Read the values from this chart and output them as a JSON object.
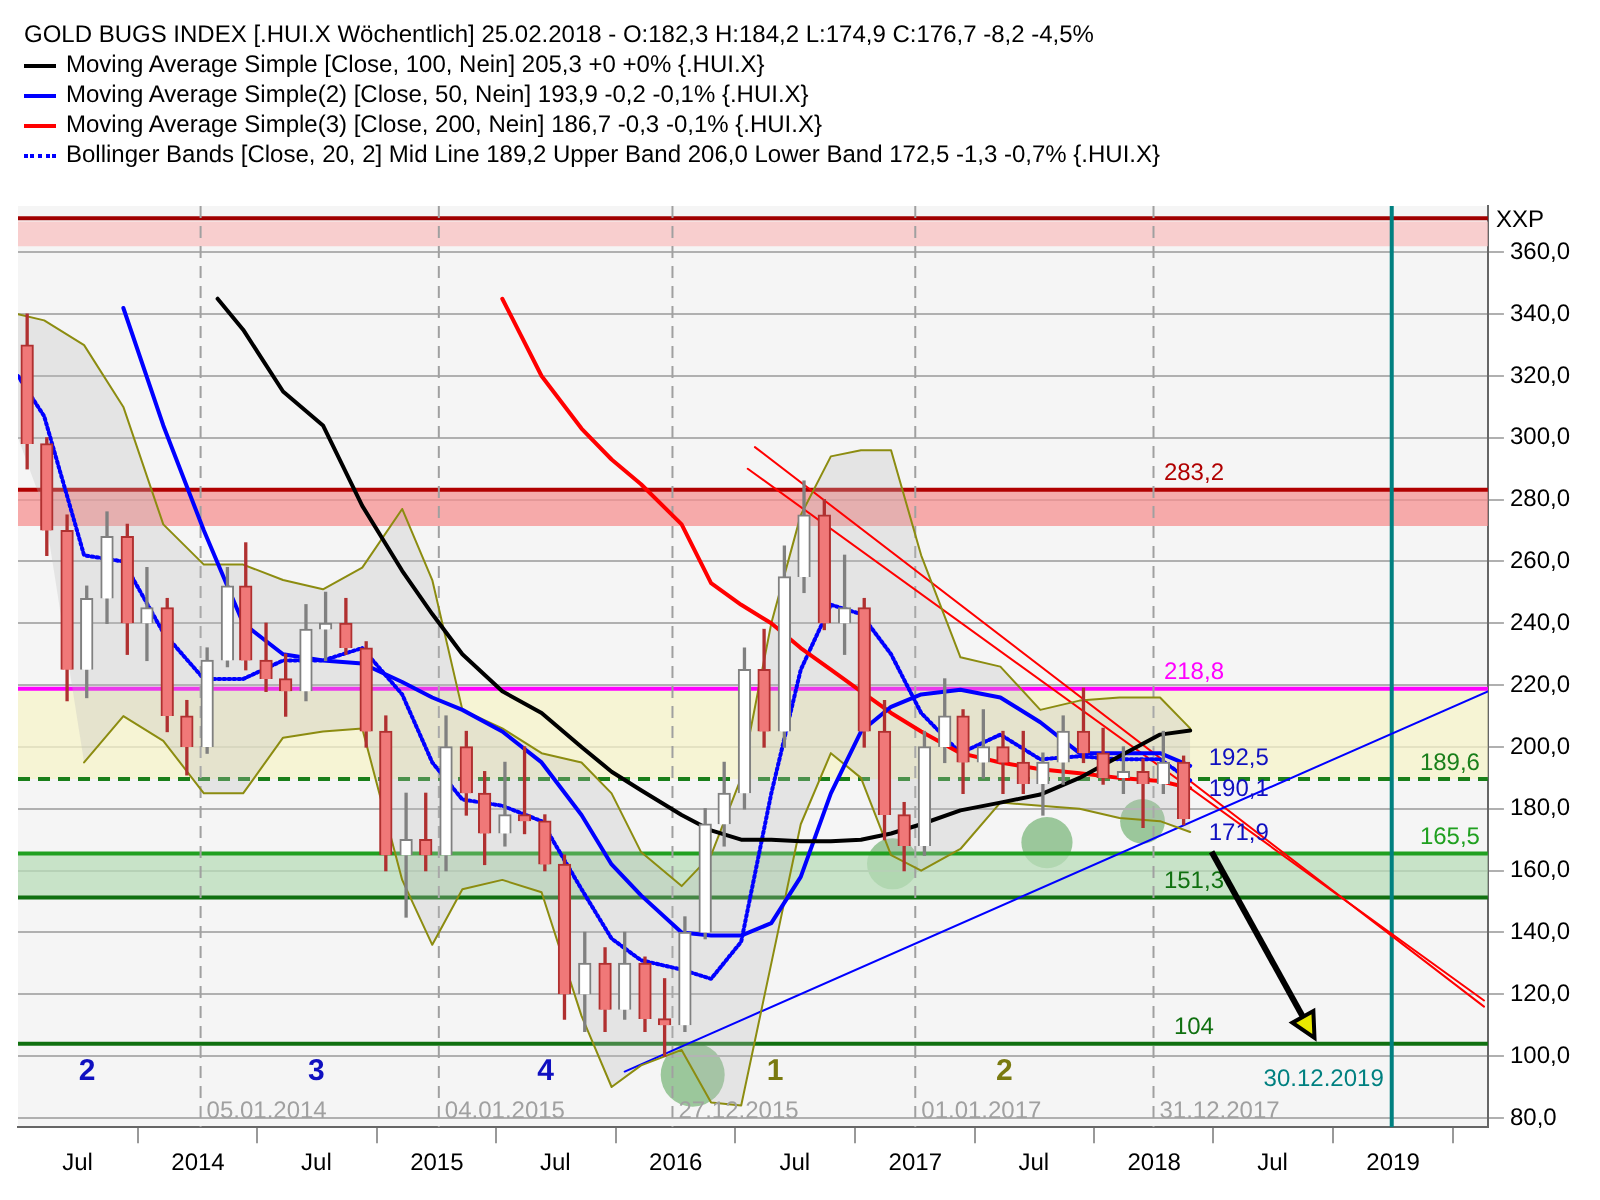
{
  "chart_data": {
    "type": "candlestick",
    "title": "GOLD BUGS INDEX [.HUI.X  Wöchentlich] 25.02.2018 - O:182,3 H:184,2 L:174,9 C:176,7 -8,2 -4,5%",
    "ylabel": "XXP",
    "xlim": [
      "2013-04-01",
      "2019-05-26"
    ],
    "xticks": [
      {
        "value": "2013-07-01",
        "label": "Jul"
      },
      {
        "value": "2014-01-01",
        "label": "2014"
      },
      {
        "value": "2014-07-01",
        "label": "Jul"
      },
      {
        "value": "2015-01-01",
        "label": "2015"
      },
      {
        "value": "2015-07-01",
        "label": "Jul"
      },
      {
        "value": "2016-01-01",
        "label": "2016"
      },
      {
        "value": "2016-07-01",
        "label": "Jul"
      },
      {
        "value": "2017-01-01",
        "label": "2017"
      },
      {
        "value": "2017-07-01",
        "label": "Jul"
      },
      {
        "value": "2018-01-01",
        "label": "2018"
      },
      {
        "value": "2018-07-01",
        "label": "Jul"
      },
      {
        "value": "2019-01-01",
        "label": "2019"
      }
    ],
    "ylim": [
      77,
      375
    ],
    "yticks": [
      {
        "value": 80,
        "label": "80,0"
      },
      {
        "value": 100,
        "label": "100,0"
      },
      {
        "value": 120,
        "label": "120,0"
      },
      {
        "value": 140,
        "label": "140,0"
      },
      {
        "value": 160,
        "label": "160,0"
      },
      {
        "value": 180,
        "label": "180,0"
      },
      {
        "value": 200,
        "label": "200,0"
      },
      {
        "value": 220,
        "label": "220,0"
      },
      {
        "value": 240,
        "label": "240,0"
      },
      {
        "value": 260,
        "label": "260,0"
      },
      {
        "value": 280,
        "label": "280,0"
      },
      {
        "value": 300,
        "label": "300,0"
      },
      {
        "value": 320,
        "label": "320,0"
      },
      {
        "value": 340,
        "label": "340,0"
      },
      {
        "value": 360,
        "label": "360,0"
      }
    ],
    "grid": "y",
    "legend": "top left",
    "series": [
      {
        "colors": [
          "#b03030",
          "#b03030",
          "#b03030",
          "#808080",
          "#808080",
          "#b03030",
          "#808080",
          "#b03030",
          "#b03030",
          "#808080",
          "#808080",
          "#b03030",
          "#b03030",
          "#b03030",
          "#808080",
          "#808080",
          "#b03030",
          "#b03030",
          "#b03030",
          "#808080",
          "#b03030",
          "#808080",
          "#b03030",
          "#b03030",
          "#808080",
          "#b03030",
          "#b03030",
          "#b03030",
          "#808080",
          "#b03030",
          "#808080",
          "#b03030",
          "#b03030",
          "#808080",
          "#808080",
          "#808080",
          "#808080",
          "#b03030",
          "#808080",
          "#808080",
          "#b03030",
          "#808080",
          "#b03030",
          "#b03030",
          "#b03030",
          "#808080",
          "#808080",
          "#b03030",
          "#808080",
          "#b03030",
          "#b03030",
          "#808080",
          "#808080",
          "#b03030",
          "#b03030",
          "#808080",
          "#b03030",
          "#808080",
          "#b03030"
        ],
        "x": [
          "2013-04-15",
          "2013-05-15",
          "2013-06-15",
          "2013-07-15",
          "2013-08-15",
          "2013-09-15",
          "2013-10-15",
          "2013-11-15",
          "2013-12-15",
          "2014-01-15",
          "2014-02-15",
          "2014-03-15",
          "2014-04-15",
          "2014-05-15",
          "2014-06-15",
          "2014-07-15",
          "2014-08-15",
          "2014-09-15",
          "2014-10-15",
          "2014-11-15",
          "2014-12-15",
          "2015-01-15",
          "2015-02-15",
          "2015-03-15",
          "2015-04-15",
          "2015-05-15",
          "2015-06-15",
          "2015-07-15",
          "2015-08-15",
          "2015-09-15",
          "2015-10-15",
          "2015-11-15",
          "2015-12-15",
          "2016-01-15",
          "2016-02-15",
          "2016-03-15",
          "2016-04-15",
          "2016-05-15",
          "2016-06-15",
          "2016-07-15",
          "2016-08-15",
          "2016-09-15",
          "2016-10-15",
          "2016-11-15",
          "2016-12-15",
          "2017-01-15",
          "2017-02-15",
          "2017-03-15",
          "2017-04-15",
          "2017-05-15",
          "2017-06-15",
          "2017-07-15",
          "2017-08-15",
          "2017-09-15",
          "2017-10-15",
          "2017-11-15",
          "2017-12-15",
          "2018-01-15",
          "2018-02-15"
        ],
        "ohlc": [
          [
            330,
            340,
            290,
            298
          ],
          [
            298,
            300,
            262,
            270
          ],
          [
            270,
            275,
            215,
            225
          ],
          [
            225,
            252,
            216,
            248
          ],
          [
            248,
            276,
            240,
            268
          ],
          [
            268,
            272,
            230,
            240
          ],
          [
            240,
            258,
            228,
            245
          ],
          [
            245,
            248,
            205,
            210
          ],
          [
            210,
            215,
            191,
            200
          ],
          [
            200,
            232,
            198,
            228
          ],
          [
            228,
            258,
            226,
            252
          ],
          [
            252,
            266,
            225,
            228
          ],
          [
            228,
            240,
            218,
            222
          ],
          [
            222,
            230,
            210,
            218
          ],
          [
            218,
            246,
            215,
            238
          ],
          [
            238,
            250,
            228,
            240
          ],
          [
            240,
            248,
            230,
            232
          ],
          [
            232,
            234,
            200,
            205
          ],
          [
            205,
            210,
            160,
            165
          ],
          [
            165,
            185,
            145,
            170
          ],
          [
            170,
            185,
            160,
            165
          ],
          [
            165,
            210,
            160,
            200
          ],
          [
            200,
            205,
            178,
            185
          ],
          [
            185,
            192,
            162,
            172
          ],
          [
            172,
            195,
            168,
            178
          ],
          [
            178,
            200,
            172,
            176
          ],
          [
            176,
            178,
            160,
            162
          ],
          [
            162,
            165,
            112,
            120
          ],
          [
            120,
            140,
            108,
            130
          ],
          [
            130,
            135,
            108,
            115
          ],
          [
            115,
            140,
            112,
            130
          ],
          [
            130,
            132,
            108,
            112
          ],
          [
            112,
            125,
            100,
            110
          ],
          [
            110,
            145,
            108,
            140
          ],
          [
            140,
            180,
            138,
            175
          ],
          [
            175,
            195,
            168,
            185
          ],
          [
            185,
            232,
            180,
            225
          ],
          [
            225,
            238,
            200,
            205
          ],
          [
            205,
            265,
            200,
            255
          ],
          [
            255,
            286,
            250,
            275
          ],
          [
            275,
            280,
            238,
            240
          ],
          [
            240,
            262,
            230,
            245
          ],
          [
            245,
            248,
            200,
            205
          ],
          [
            205,
            215,
            170,
            178
          ],
          [
            178,
            182,
            160,
            168
          ],
          [
            168,
            205,
            165,
            200
          ],
          [
            200,
            222,
            195,
            210
          ],
          [
            210,
            212,
            185,
            195
          ],
          [
            195,
            212,
            190,
            200
          ],
          [
            200,
            205,
            185,
            195
          ],
          [
            195,
            205,
            185,
            188
          ],
          [
            188,
            198,
            178,
            195
          ],
          [
            195,
            210,
            188,
            205
          ],
          [
            205,
            219,
            195,
            198
          ],
          [
            198,
            206,
            188,
            190
          ],
          [
            190,
            200,
            185,
            192
          ],
          [
            192,
            196,
            174,
            188
          ],
          [
            188,
            205,
            185,
            195
          ],
          [
            195,
            197,
            174.9,
            176.7
          ]
        ]
      },
      {
        "type": "line",
        "name": "Moving Average Simple [Close, 100, Nein] 205,3 +0 +0% {.HUI.X}",
        "color": "#000000",
        "x": [
          "2014-01-31",
          "2014-03-11",
          "2014-05-11",
          "2014-07-11",
          "2014-09-09",
          "2014-11-09",
          "2014-12-25",
          "2015-02-09",
          "2015-04-11",
          "2015-06-10",
          "2015-08-10",
          "2015-09-25",
          "2015-11-09",
          "2016-01-10",
          "2016-02-24",
          "2016-04-10",
          "2016-05-26",
          "2016-07-10",
          "2016-08-25",
          "2016-10-10",
          "2016-11-25",
          "2017-01-10",
          "2017-03-11",
          "2017-05-11",
          "2017-07-11",
          "2017-09-09",
          "2017-11-09",
          "2018-01-10",
          "2018-02-25"
        ],
        "values": [
          345,
          335,
          315,
          304,
          278,
          257,
          243,
          230,
          218,
          211,
          200,
          192,
          186,
          178,
          173,
          170,
          170,
          169.5,
          169.5,
          170,
          172,
          175,
          179.5,
          182,
          184.6,
          190,
          197,
          204,
          205.3
        ]
      },
      {
        "type": "line",
        "name": "Moving Average Simple(2) [Close, 50, Nein] 193,9 -0,2 -0,1% {.HUI.X}",
        "color": "#0000ff",
        "x": [
          "2013-09-09",
          "2013-11-09",
          "2014-01-10",
          "2014-03-11",
          "2014-05-11",
          "2014-07-11",
          "2014-09-09",
          "2014-11-09",
          "2014-12-25",
          "2015-02-09",
          "2015-04-11",
          "2015-06-10",
          "2015-08-10",
          "2015-09-25",
          "2015-11-09",
          "2016-01-10",
          "2016-02-24",
          "2016-04-10",
          "2016-05-26",
          "2016-07-10",
          "2016-08-25",
          "2016-10-10",
          "2016-11-25",
          "2017-01-10",
          "2017-03-11",
          "2017-05-11",
          "2017-07-11",
          "2017-09-09",
          "2017-11-09",
          "2018-01-10",
          "2018-02-25"
        ],
        "values": [
          342,
          304,
          270,
          240,
          230,
          228,
          227,
          221,
          216,
          212,
          205,
          195,
          178,
          162,
          152,
          140,
          139,
          139,
          143,
          158,
          185,
          205,
          213,
          217,
          218.5,
          216,
          208,
          198,
          198,
          198,
          193.9
        ]
      },
      {
        "type": "line",
        "name": "Moving Average Simple(3) [Close, 200, Nein] 186,7 -0,3 -0,1% {.HUI.X}",
        "color": "#ff0000",
        "x": [
          "2015-04-11",
          "2015-06-10",
          "2015-08-10",
          "2015-09-25",
          "2015-11-09",
          "2016-01-10",
          "2016-02-24",
          "2016-04-10",
          "2016-05-26",
          "2016-07-10",
          "2016-08-25",
          "2016-10-10",
          "2016-11-25",
          "2017-01-10",
          "2017-03-11",
          "2017-05-11",
          "2017-07-11",
          "2017-09-09",
          "2017-11-09",
          "2018-01-10",
          "2018-02-25"
        ],
        "values": [
          345,
          320,
          303,
          293,
          285,
          272,
          253,
          246,
          240,
          232,
          225,
          218,
          211,
          205,
          198,
          195,
          192.8,
          191.5,
          190,
          189,
          186.7
        ]
      },
      {
        "type": "line",
        "name": "Bollinger Bands [Close, 20, 2] Mid Line 189,2 Upper Band 206,0 Lower Band 172,5 -1,3 -0,7% {.HUI.X}",
        "color": "#0000ff",
        "line_style": "dotted",
        "x": [
          "2013-04-01",
          "2013-05-11",
          "2013-07-11",
          "2013-09-09",
          "2013-11-09",
          "2014-01-10",
          "2014-03-11",
          "2014-05-11",
          "2014-07-11",
          "2014-09-09",
          "2014-11-09",
          "2014-12-25",
          "2015-02-09",
          "2015-04-11",
          "2015-06-10",
          "2015-08-10",
          "2015-09-25",
          "2015-11-09",
          "2016-01-10",
          "2016-02-24",
          "2016-04-10",
          "2016-05-26",
          "2016-07-10",
          "2016-08-25",
          "2016-10-10",
          "2016-11-25",
          "2017-01-10",
          "2017-03-11",
          "2017-05-11",
          "2017-07-11",
          "2017-09-09",
          "2017-11-09",
          "2018-01-10",
          "2018-02-25"
        ],
        "values": [
          320,
          307,
          262,
          260,
          237,
          222,
          222,
          228,
          228,
          232,
          217,
          195,
          183,
          181,
          176,
          154,
          138,
          131,
          128,
          125,
          137,
          185,
          225,
          246,
          243,
          230,
          211,
          198,
          204,
          196,
          197,
          196,
          196,
          189.2
        ],
        "upper": [
          340,
          338,
          330,
          310,
          272,
          259,
          259,
          254,
          251,
          258,
          277,
          254,
          212,
          206,
          198,
          195,
          185,
          166,
          155,
          165,
          190,
          240,
          275,
          294,
          296,
          296,
          262,
          229,
          226,
          212,
          215,
          216,
          216,
          206
        ],
        "lower": [
          300,
          277,
          195,
          210,
          202,
          185,
          185,
          203,
          205,
          206,
          157,
          136,
          154,
          157,
          153,
          113,
          90,
          97,
          102,
          85,
          84,
          130,
          175,
          198,
          190,
          165,
          160,
          167,
          182,
          181,
          180,
          177,
          176,
          172.5
        ]
      },
      {
        "type": "line",
        "color": "#8c8c10",
        "x": [
          "2013-04-01",
          "2013-05-11",
          "2013-07-11",
          "2013-09-09",
          "2013-11-09",
          "2014-01-10",
          "2014-03-11",
          "2014-05-11",
          "2014-07-11",
          "2014-09-09",
          "2014-11-09",
          "2014-12-25",
          "2015-02-09",
          "2015-04-11",
          "2015-06-10",
          "2015-08-10",
          "2015-09-25",
          "2015-11-09",
          "2016-01-10",
          "2016-02-24",
          "2016-04-10",
          "2016-05-26",
          "2016-07-10",
          "2016-08-25",
          "2016-10-10",
          "2016-11-25",
          "2017-01-10",
          "2017-03-11",
          "2017-05-11",
          "2017-07-11",
          "2017-09-09",
          "2017-11-09",
          "2018-01-10",
          "2018-02-25"
        ],
        "values": [
          340,
          338,
          330,
          310,
          272,
          259,
          259,
          254,
          251,
          258,
          277,
          254,
          212,
          206,
          198,
          195,
          185,
          166,
          155,
          165,
          190,
          240,
          275,
          294,
          296,
          296,
          262,
          229,
          226,
          212,
          215,
          216,
          216,
          206
        ]
      },
      {
        "type": "line",
        "color": "#8c8c10",
        "x": [
          "2013-07-11",
          "2013-09-09",
          "2013-11-09",
          "2014-01-10",
          "2014-03-11",
          "2014-05-11",
          "2014-07-11",
          "2014-09-09",
          "2014-11-09",
          "2014-12-25",
          "2015-02-09",
          "2015-04-11",
          "2015-06-10",
          "2015-08-10",
          "2015-09-25",
          "2015-11-09",
          "2016-01-10",
          "2016-02-24",
          "2016-04-10",
          "2016-05-26",
          "2016-07-10",
          "2016-08-25",
          "2016-10-10",
          "2016-11-25",
          "2017-01-10",
          "2017-03-11",
          "2017-05-11",
          "2017-07-11",
          "2017-09-09",
          "2017-11-09",
          "2018-01-10",
          "2018-02-25"
        ],
        "values": [
          195,
          210,
          202,
          185,
          185,
          203,
          205,
          206,
          157,
          136,
          154,
          157,
          153,
          113,
          90,
          97,
          102,
          85,
          84,
          130,
          175,
          198,
          190,
          165,
          160,
          167,
          182,
          181,
          180,
          177,
          176,
          172.5
        ]
      },
      {
        "type": "line",
        "color": "#0000ff",
        "x": [
          "2015-10-15",
          "2019-05-26"
        ],
        "values": [
          95,
          218
        ]
      },
      {
        "type": "line",
        "color": "#ff0000",
        "x": [
          "2016-05-01",
          "2019-05-20"
        ],
        "values": [
          297,
          116
        ]
      },
      {
        "type": "line",
        "color": "#ff0000",
        "x": [
          "2016-04-20",
          "2019-05-20"
        ],
        "values": [
          290,
          118
        ]
      }
    ],
    "bands": [
      {
        "axis": "y",
        "from": 362,
        "to": 370,
        "color": "#f8c0c0"
      },
      {
        "axis": "y",
        "from": 271.5,
        "to": 283.2,
        "color": "#f59090"
      },
      {
        "axis": "y",
        "from": 189.6,
        "to": 218.8,
        "color": "#f5f3c8"
      },
      {
        "axis": "y",
        "from": 151.3,
        "to": 165.5,
        "color": "#b8dcb8"
      }
    ],
    "ref_lines": [
      {
        "axis": "y",
        "value": 371,
        "color": "#a00000"
      },
      {
        "axis": "y",
        "value": 283.2,
        "label": "283,2",
        "color": "#b00000"
      },
      {
        "axis": "y",
        "value": 218.8,
        "label": "218,8",
        "color": "#ff00ff"
      },
      {
        "axis": "y",
        "value": 189.6,
        "label": "189,6",
        "color": "#1a7f1a",
        "line_style": "dashed"
      },
      {
        "axis": "y",
        "value": 165.5,
        "label": "165,5",
        "color": "#20a020"
      },
      {
        "axis": "y",
        "value": 151.3,
        "label": "151,3",
        "color": "#107010"
      },
      {
        "axis": "y",
        "value": 104,
        "label": "104",
        "color": "#107010"
      },
      {
        "axis": "x",
        "value": "2014-01-05",
        "label": "05.01.2014",
        "color": "#a0a0a0",
        "line_style": "dashed"
      },
      {
        "axis": "x",
        "value": "2015-01-04",
        "label": "04.01.2015",
        "color": "#a0a0a0",
        "line_style": "dashed"
      },
      {
        "axis": "x",
        "value": "2015-12-27",
        "label": "27.12.2015",
        "color": "#a0a0a0",
        "line_style": "dashed"
      },
      {
        "axis": "x",
        "value": "2017-01-01",
        "label": "01.01.2017",
        "color": "#a0a0a0",
        "line_style": "dashed"
      },
      {
        "axis": "x",
        "value": "2017-12-31",
        "label": "31.12.2017",
        "color": "#a0a0a0",
        "line_style": "dashed"
      },
      {
        "axis": "x",
        "value": "2018-12-30",
        "label": "30.12.2019",
        "color": "#008080"
      }
    ],
    "annotations": [
      {
        "text": "171,9",
        "x": "2018-03-01",
        "y": 171.9
      },
      {
        "text": "192,5",
        "x": "2018-03-01",
        "y": 192.5
      },
      {
        "text": "190,1",
        "x": "2018-03-01",
        "y": 190.1
      },
      "2",
      "3",
      "4",
      "1",
      "2"
    ]
  }
}
